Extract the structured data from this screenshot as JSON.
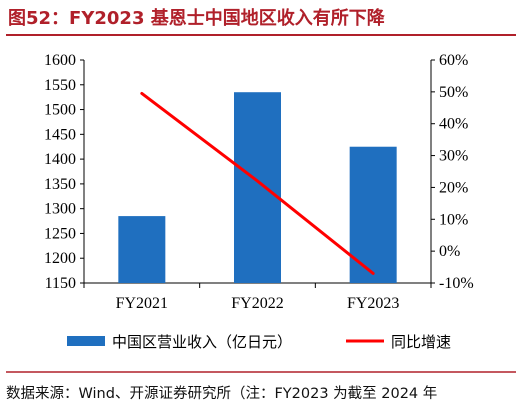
{
  "title": "图52：FY2023 基恩士中国地区收入有所下降",
  "source": "数据来源：Wind、开源证券研究所（注：FY2023 为截至 2024 年",
  "colors": {
    "bar": "#1f6fbf",
    "line": "#ff0000",
    "title": "#b0202a"
  },
  "chart_data": {
    "type": "bar",
    "categories": [
      "FY2021",
      "FY2022",
      "FY2023"
    ],
    "series": [
      {
        "name": "中国区营业收入（亿日元）",
        "type": "bar",
        "axis": "left",
        "values": [
          1285,
          1535,
          1425
        ]
      },
      {
        "name": "同比增速",
        "type": "line",
        "axis": "right",
        "values": [
          49.5,
          22,
          -7
        ]
      }
    ],
    "y_left": {
      "min": 1150,
      "max": 1600,
      "step": 50,
      "ticks": [
        "1150",
        "1200",
        "1250",
        "1300",
        "1350",
        "1400",
        "1450",
        "1500",
        "1550",
        "1600"
      ]
    },
    "y_right": {
      "min": -10,
      "max": 60,
      "step": 10,
      "ticks": [
        "-10%",
        "0%",
        "10%",
        "20%",
        "30%",
        "40%",
        "50%",
        "60%"
      ]
    },
    "legend_position": "bottom",
    "grid": false
  }
}
